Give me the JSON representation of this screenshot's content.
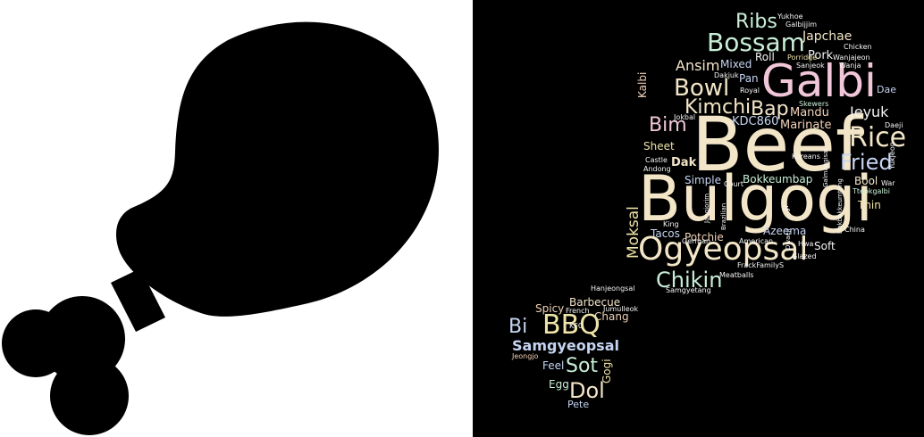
{
  "icon": {
    "name": "chicken-drumstick-icon",
    "color": "#000000",
    "background": "#ffffff"
  },
  "cloud": {
    "background": "#000000",
    "palette": {
      "cream": "#f3e6c8",
      "pink": "#f1c6d8",
      "mint": "#c9eed8",
      "yellow": "#eee4a8",
      "blue": "#c6d4f2",
      "peach": "#f2d2b8",
      "white": "#f4f4f4",
      "lilac": "#dcc8ef",
      "sand": "#e6d5a8"
    },
    "words": [
      {
        "text": "Beef"
      },
      {
        "text": "Bulgogi"
      },
      {
        "text": "Galbi"
      },
      {
        "text": "Ogyeopsal"
      },
      {
        "text": "Bossam"
      },
      {
        "text": "Rice"
      },
      {
        "text": "Fried"
      },
      {
        "text": "Bowl"
      },
      {
        "text": "Kimchi"
      },
      {
        "text": "Ribs"
      },
      {
        "text": "BBQ"
      },
      {
        "text": "Chikin"
      },
      {
        "text": "Bap"
      },
      {
        "text": "Bim"
      },
      {
        "text": "Dol"
      },
      {
        "text": "Sot"
      },
      {
        "text": "Samgyeopsal"
      },
      {
        "text": "Moksal"
      },
      {
        "text": "Jeyuk"
      },
      {
        "text": "Ansim"
      },
      {
        "text": "Bi"
      },
      {
        "text": "Japchae"
      },
      {
        "text": "Mandu"
      },
      {
        "text": "Marinate"
      },
      {
        "text": "KDC860"
      },
      {
        "text": "Pork"
      },
      {
        "text": "Mixed"
      },
      {
        "text": "Roll"
      },
      {
        "text": "Pan"
      },
      {
        "text": "Kalbi"
      },
      {
        "text": "Sheet"
      },
      {
        "text": "Dak"
      },
      {
        "text": "Simple"
      },
      {
        "text": "Bokkeumbap"
      },
      {
        "text": "Azeema"
      },
      {
        "text": "Tacos"
      },
      {
        "text": "Potchie"
      },
      {
        "text": "Soft"
      },
      {
        "text": "Bool"
      },
      {
        "text": "Thin"
      },
      {
        "text": "Barbecue"
      },
      {
        "text": "Chang"
      },
      {
        "text": "Spicy"
      },
      {
        "text": "Gogi"
      },
      {
        "text": "Feel"
      },
      {
        "text": "Egg"
      },
      {
        "text": "Pete"
      },
      {
        "text": "Dae"
      },
      {
        "text": "Chicken"
      },
      {
        "text": "Sanjeok"
      },
      {
        "text": "Porridge"
      },
      {
        "text": "Wanjajeon"
      },
      {
        "text": "Wanja"
      },
      {
        "text": "Dakjuk"
      },
      {
        "text": "Royal"
      },
      {
        "text": "Jokbal"
      },
      {
        "text": "Skewers"
      },
      {
        "text": "Daeji"
      },
      {
        "text": "Yukjeon"
      },
      {
        "text": "Koreans"
      },
      {
        "text": "Castle"
      },
      {
        "text": "Andong"
      },
      {
        "text": "Court"
      },
      {
        "text": "Tteokgalbi"
      },
      {
        "text": "War"
      },
      {
        "text": "Galmaegisal"
      },
      {
        "text": "Dakbokkeumtang"
      },
      {
        "text": "Ji"
      },
      {
        "text": "King"
      },
      {
        "text": "Jangjorim"
      },
      {
        "text": "Brazilian"
      },
      {
        "text": "German"
      },
      {
        "text": "American"
      },
      {
        "text": "Hwa"
      },
      {
        "text": "Glazed"
      },
      {
        "text": "China"
      },
      {
        "text": "Dwaeji"
      },
      {
        "text": "FrackFamilyS"
      },
      {
        "text": "Meatballs"
      },
      {
        "text": "Samgyetang"
      },
      {
        "text": "Hanjeongsal"
      },
      {
        "text": "French"
      },
      {
        "text": "Jumulleok"
      },
      {
        "text": "KFC"
      },
      {
        "text": "Jeongjo"
      },
      {
        "text": "Yukhoe"
      },
      {
        "text": "Galbijjim"
      }
    ]
  }
}
